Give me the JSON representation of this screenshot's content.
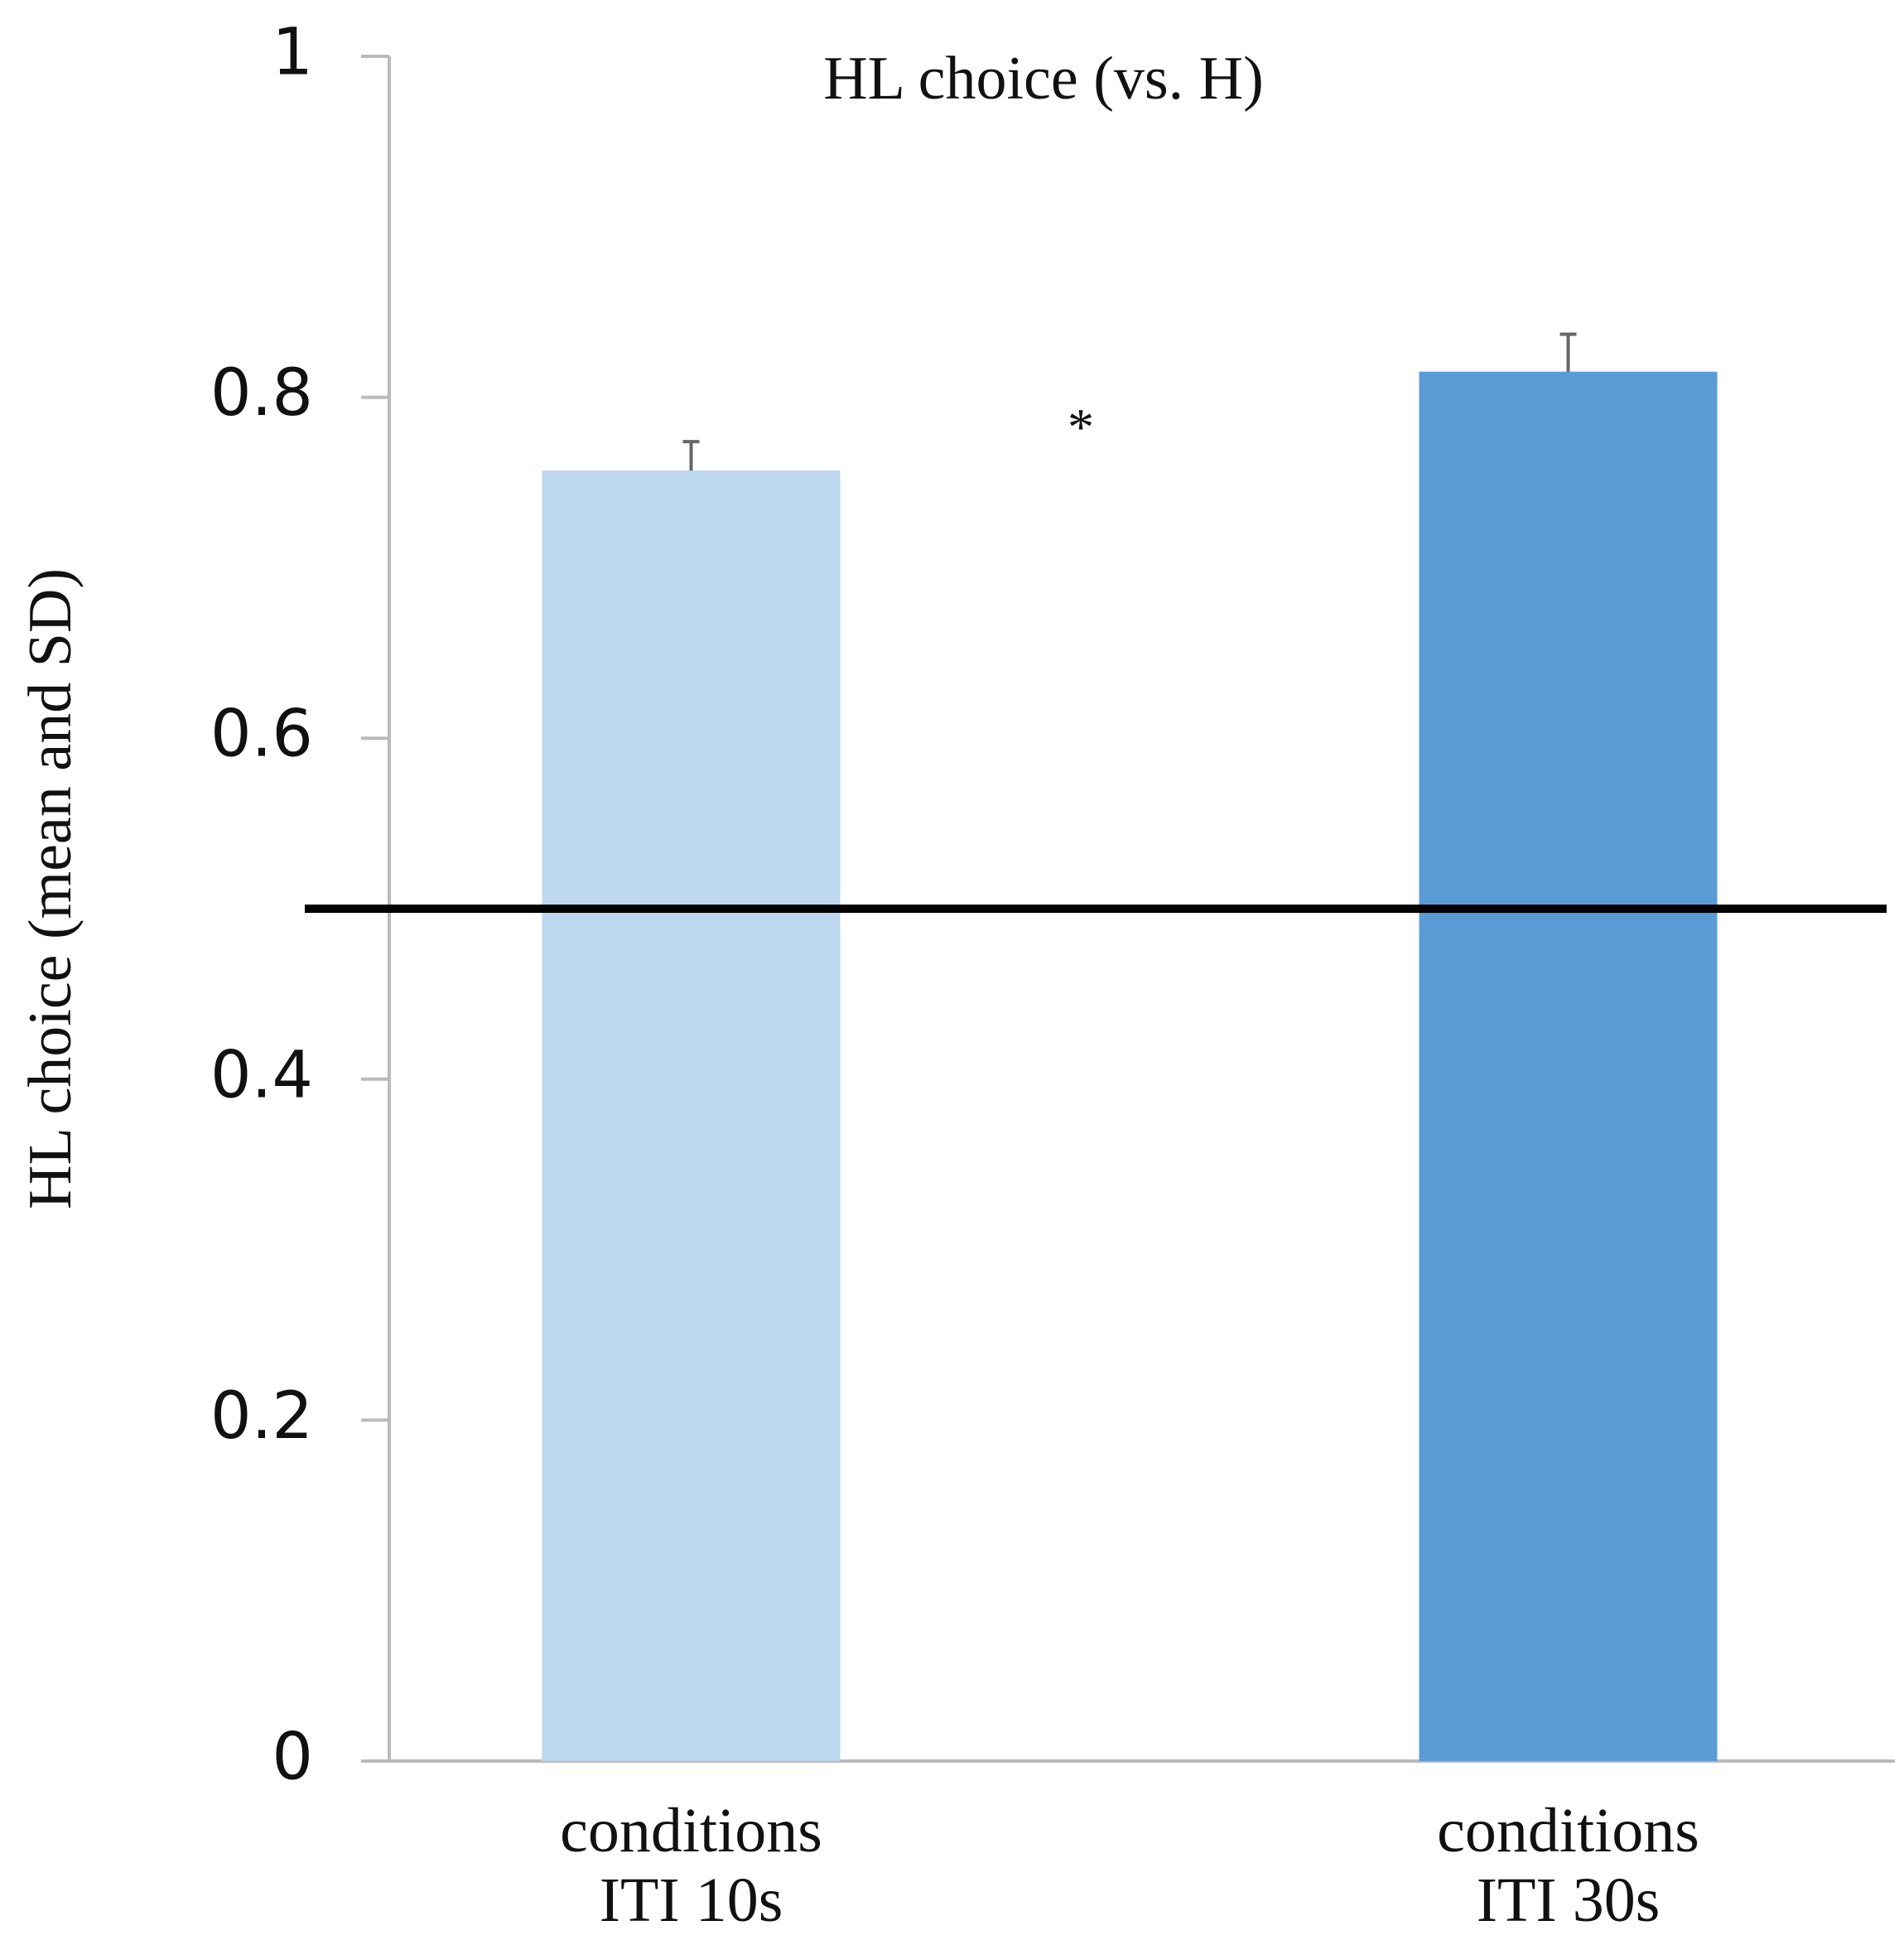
{
  "chart_data": {
    "type": "bar",
    "title": "HL choice (vs. H)",
    "y_label": "HL choice (mean and SD)",
    "categories": [
      "conditions\nITI 10s",
      "conditions\nITI 30s"
    ],
    "values": [
      0.757,
      0.815
    ],
    "errors": [
      0.017,
      0.022
    ],
    "colors": [
      "#bdd7ee",
      "#5b9bd5"
    ],
    "ylim": [
      0,
      1
    ],
    "yticks": [
      0,
      0.2,
      0.4,
      0.6,
      0.8,
      1
    ],
    "reference_line": 0.5,
    "annotation": {
      "text": "*",
      "y": 0.785
    }
  }
}
